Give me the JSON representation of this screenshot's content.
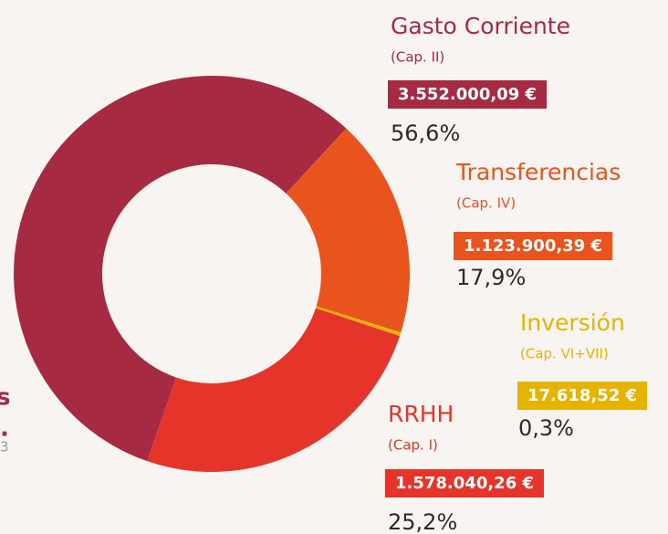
{
  "chart_data": {
    "type": "pie",
    "categories": [
      "Gasto Corriente",
      "Transferencias",
      "Inversión",
      "RRHH"
    ],
    "subtitles": [
      "(Cap. II)",
      "(Cap. IV)",
      "(Cap. VI+VII)",
      "(Cap. I)"
    ],
    "amounts": [
      "3.552.000,09 €",
      "1.123.900,39 €",
      "17.618,52 €",
      "1.578.040,26 €"
    ],
    "values": [
      56.6,
      17.9,
      0.3,
      25.2
    ],
    "value_labels": [
      "56,6%",
      "17,9%",
      "0,3%",
      "25,2%"
    ],
    "colors": [
      "#a62a41",
      "#e9531e",
      "#e6b400",
      "#e5352b"
    ],
    "side_text": [
      "s",
      ".",
      "3"
    ]
  }
}
